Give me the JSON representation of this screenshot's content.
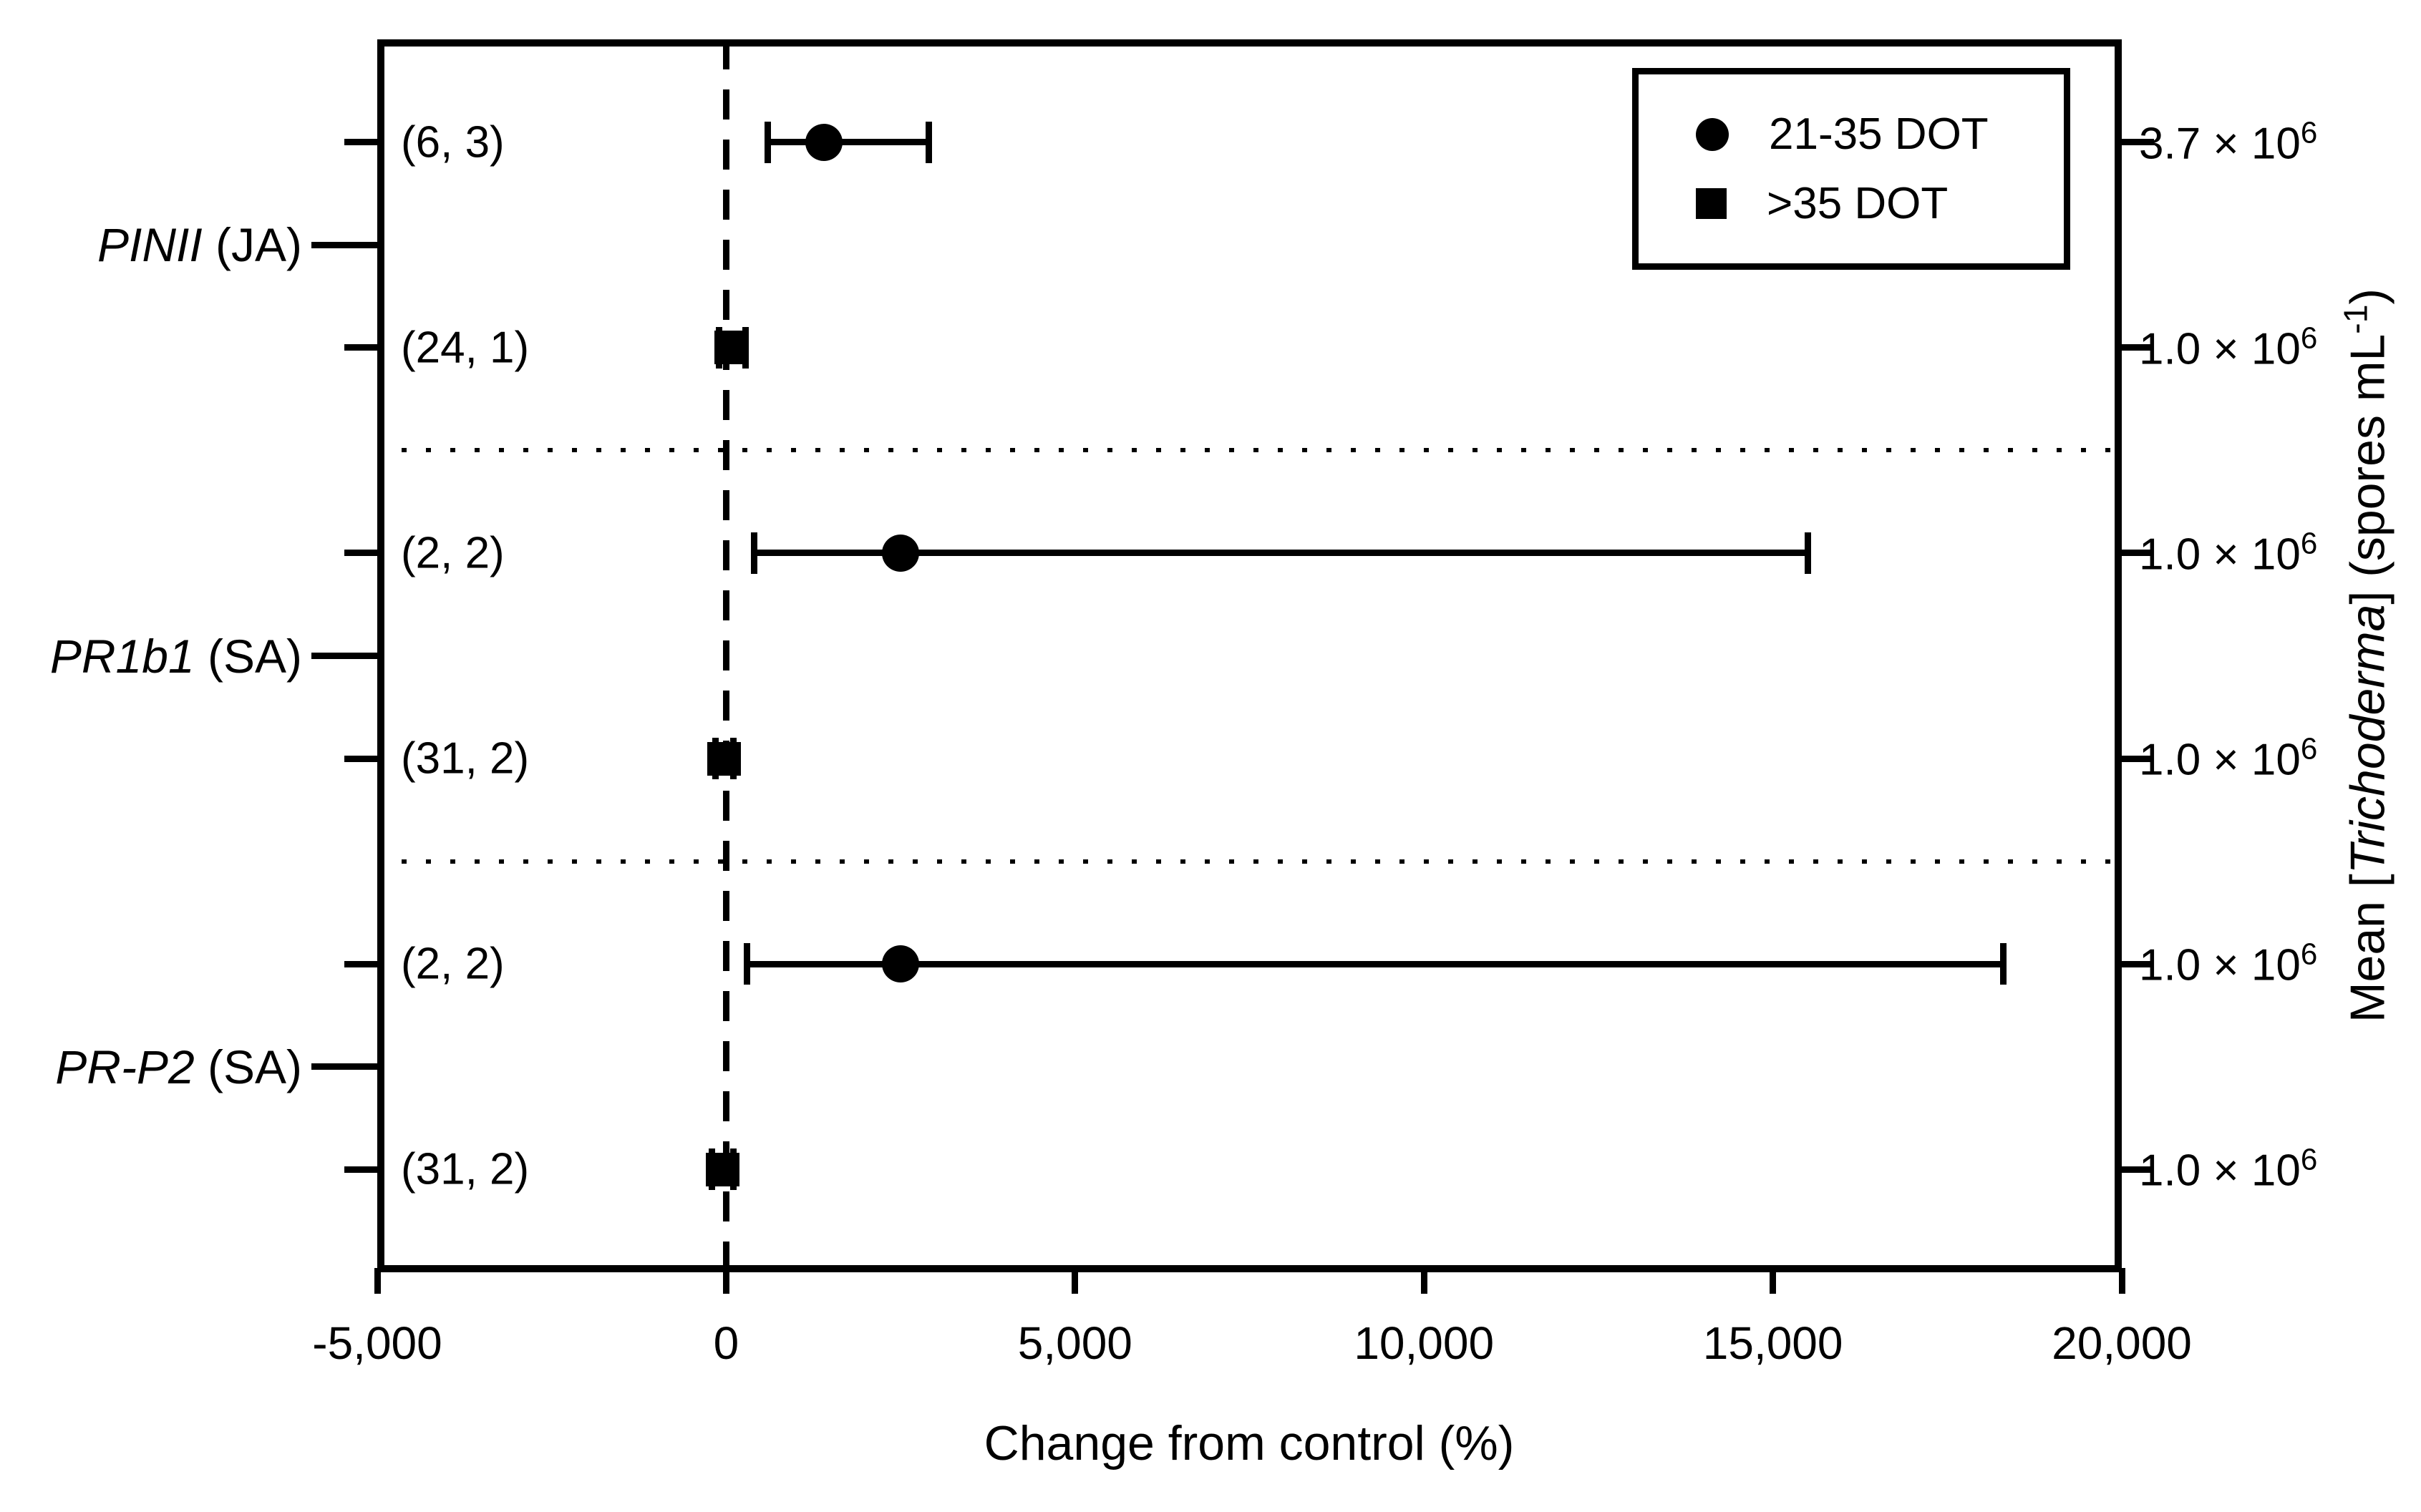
{
  "axes": {
    "x": {
      "title": "Change from control (%)",
      "range": [
        -5000,
        20000
      ],
      "tick_values": [
        -5000,
        0,
        5000,
        10000,
        15000,
        20000
      ],
      "tick_labels": [
        "-5,000",
        "0",
        "5,000",
        "10,000",
        "15,000",
        "20,000"
      ],
      "zero_reference_line": 0
    },
    "right_y": {
      "title_prefix": "Mean [",
      "title_italic": "Trichoderma",
      "title_mid": "] (spores mL",
      "title_sup": "-1",
      "title_suffix": ")"
    }
  },
  "legend": {
    "items": [
      {
        "marker": "circle",
        "label": "21-35 DOT"
      },
      {
        "marker": "square",
        "label": ">35 DOT"
      }
    ]
  },
  "colors": {
    "foreground": "#000000",
    "background": "#ffffff"
  },
  "chart_data": {
    "type": "scatter",
    "subtype": "horizontal-dot-plot-with-error-bars",
    "xlabel": "Change from control (%)",
    "xlim": [
      -5000,
      20000
    ],
    "x_ticks": [
      -5000,
      0,
      5000,
      10000,
      15000,
      20000
    ],
    "grid": false,
    "legend_position": "top-right-inside",
    "groups": [
      {
        "gene": "PINII",
        "qualifier": "(JA)",
        "rows": [
          {
            "n_label": "(6, 3)",
            "series": "21-35 DOT",
            "marker": "circle",
            "value": 1400,
            "ci_low": 600,
            "ci_high": 2900,
            "right_label_base": "3.7 × 10",
            "right_label_exp": "6"
          },
          {
            "n_label": "(24, 1)",
            "series": ">35 DOT",
            "marker": "square",
            "value": 70,
            "ci_low": -100,
            "ci_high": 280,
            "right_label_base": "1.0 × 10",
            "right_label_exp": "6"
          }
        ]
      },
      {
        "gene": "PR1b1",
        "qualifier": "(SA)",
        "rows": [
          {
            "n_label": "(2, 2)",
            "series": "21-35 DOT",
            "marker": "circle",
            "value": 2500,
            "ci_low": 400,
            "ci_high": 15500,
            "right_label_base": "1.0 × 10",
            "right_label_exp": "6"
          },
          {
            "n_label": "(31, 2)",
            "series": ">35 DOT",
            "marker": "square",
            "value": -30,
            "ci_low": -150,
            "ci_high": 100,
            "right_label_base": "1.0 × 10",
            "right_label_exp": "6"
          }
        ]
      },
      {
        "gene": "PR-P2",
        "qualifier": "(SA)",
        "rows": [
          {
            "n_label": "(2, 2)",
            "series": "21-35 DOT",
            "marker": "circle",
            "value": 2500,
            "ci_low": 300,
            "ci_high": 18300,
            "right_label_base": "1.0 × 10",
            "right_label_exp": "6"
          },
          {
            "n_label": "(31, 2)",
            "series": ">35 DOT",
            "marker": "square",
            "value": -50,
            "ci_low": -200,
            "ci_high": 100,
            "right_label_base": "1.0 × 10",
            "right_label_exp": "6"
          }
        ]
      }
    ]
  }
}
